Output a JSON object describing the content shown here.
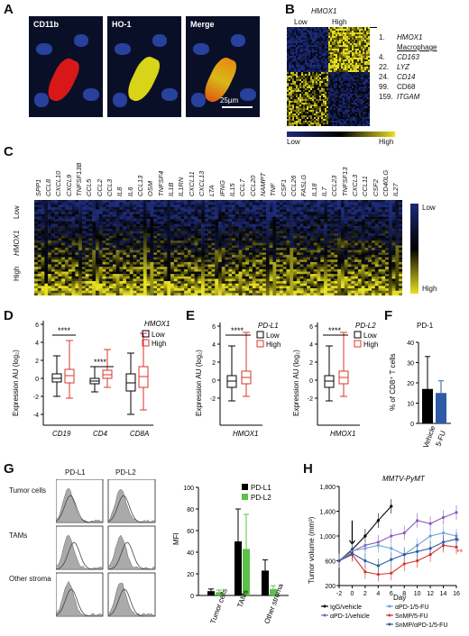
{
  "panels": {
    "a": "A",
    "b": "B",
    "c": "C",
    "d": "D",
    "e": "E",
    "f": "F",
    "g": "G",
    "h": "H"
  },
  "panelA": {
    "labels": [
      "CD11b",
      "HO-1",
      "Merge"
    ],
    "scale_bar": "25µm"
  },
  "panelB": {
    "title": "HMOX1",
    "col_low": "Low",
    "col_high": "High",
    "genes": [
      {
        "rank": "1.",
        "name": "HMOX1",
        "italic": true
      },
      {
        "rank": "",
        "name": "Macrophage",
        "italic": false,
        "underline": true
      },
      {
        "rank": "4.",
        "name": "CD163",
        "italic": true
      },
      {
        "rank": "22.",
        "name": "LYZ",
        "italic": true
      },
      {
        "rank": "24.",
        "name": "CD14",
        "italic": true
      },
      {
        "rank": "99.",
        "name": "CD68",
        "italic": false
      },
      {
        "rank": "159.",
        "name": "ITGAM",
        "italic": true
      }
    ],
    "scale_low": "Low",
    "scale_high": "High"
  },
  "panelC": {
    "genes": [
      "SPP1",
      "CCL8",
      "CXCL10",
      "CXCL9",
      "TNFSF13B",
      "CCL5",
      "CCL2",
      "CCL3",
      "IL8",
      "IL6",
      "CCL13",
      "OSM",
      "TNFSF4",
      "IL1B",
      "IL1RN",
      "CXCL11",
      "CXCL13",
      "LTA",
      "IFNG",
      "IL15",
      "CCL7",
      "CCL20",
      "NAMPT",
      "TNF",
      "CSF1",
      "CCL26",
      "FASLG",
      "IL18",
      "IL7",
      "CCL23",
      "TNFSF13",
      "CXCL3",
      "CCL11",
      "CSF2",
      "CD40LG",
      "IL27"
    ],
    "row_title": "HMOX1",
    "row_low": "Low",
    "row_high": "High",
    "scale_low": "Low",
    "scale_high": "High"
  },
  "panelD": {
    "ylabel": "Expression AU (log₂)",
    "legend_title": "HMOX1",
    "legend": [
      "Low",
      "High"
    ],
    "yticks": [
      "6",
      "4",
      "2",
      "0",
      "-2",
      "-4"
    ],
    "categories": [
      "CD19",
      "CD4",
      "CD8A"
    ],
    "sig": "****"
  },
  "panelE": {
    "ylabel": "Expression AU (log₂)",
    "plots": [
      {
        "legend_title": "PD-L1",
        "yticks": [
          "6",
          "4",
          "2",
          "0",
          "-2"
        ],
        "xlabel": "HMOX1"
      },
      {
        "legend_title": "PD-L2",
        "yticks": [
          "6",
          "4",
          "2",
          "0",
          "-2"
        ],
        "xlabel": "HMOX1"
      }
    ],
    "legend": [
      "Low",
      "High"
    ],
    "sig": "****"
  },
  "panelF": {
    "title": "PD-1",
    "ylabel": "% of CD8⁺ T cells",
    "yticks": [
      "40",
      "30",
      "20",
      "10",
      "0"
    ],
    "categories": [
      "Vehicle",
      "5-FU"
    ]
  },
  "panelG": {
    "col_headers": [
      "PD-L1",
      "PD-L2"
    ],
    "row_labels": [
      "Tumor cells",
      "TAMs",
      "Other stroma"
    ],
    "ylabel": "MFI",
    "yticks": [
      "100",
      "80",
      "60",
      "40",
      "20",
      "0"
    ],
    "legend": [
      "PD-L1",
      "PD-L2"
    ],
    "categories": [
      "Tumor cells",
      "TAMs",
      "Other stroma"
    ]
  },
  "panelH": {
    "title": "MMTV-PyMT",
    "ylabel": "Tumor volume (mm³)",
    "xlabel": "Day",
    "yticks": [
      "1,800",
      "1,400",
      "1,000",
      "600",
      "200"
    ],
    "xticks": [
      "-2",
      "0",
      "2",
      "4",
      "6",
      "8",
      "10",
      "12",
      "14",
      "16"
    ],
    "legend": [
      "IgG/vehicle",
      "αPD-1/vehicle",
      "αPD-1/5-FU",
      "SnMP/5-FU",
      "SnMP/αPD-1/5-FU"
    ],
    "sig": [
      "*",
      "**"
    ]
  },
  "colors": {
    "low": "#1c2a78",
    "high": "#e8e020",
    "red": "#d9342b",
    "black": "#000000",
    "green": "#5cc14a",
    "blue": "#2e5aa8",
    "purple": "#8a5bb8",
    "lightblue": "#6fa2d8"
  },
  "chart_data": [
    {
      "type": "bar",
      "title": "PD-1",
      "ylabel": "% of CD8⁺ T cells",
      "categories": [
        "Vehicle",
        "5-FU"
      ],
      "values": [
        17,
        15
      ],
      "ylim": [
        0,
        40
      ]
    },
    {
      "type": "bar",
      "ylabel": "MFI",
      "categories": [
        "Tumor cells",
        "TAMs",
        "Other stroma"
      ],
      "series": [
        {
          "name": "PD-L1",
          "values": [
            4,
            50,
            23
          ]
        },
        {
          "name": "PD-L2",
          "values": [
            3,
            43,
            6
          ]
        }
      ],
      "ylim": [
        0,
        100
      ]
    },
    {
      "type": "line",
      "title": "MMTV-PyMT",
      "xlabel": "Day",
      "ylabel": "Tumor volume (mm³)",
      "x": [
        -2,
        0,
        2,
        4,
        6,
        8,
        10,
        12,
        14,
        16
      ],
      "series": [
        {
          "name": "IgG/vehicle",
          "values": [
            600,
            780,
            1000,
            1250,
            1480,
            null,
            null,
            null,
            null,
            null
          ]
        },
        {
          "name": "αPD-1/vehicle",
          "values": [
            600,
            750,
            850,
            900,
            1000,
            1050,
            1250,
            1200,
            1300,
            1380
          ]
        },
        {
          "name": "αPD-1/5-FU",
          "values": [
            600,
            760,
            800,
            850,
            800,
            700,
            850,
            1000,
            1050,
            1000
          ]
        },
        {
          "name": "SnMP/5-FU",
          "values": [
            600,
            700,
            420,
            380,
            400,
            550,
            600,
            700,
            850,
            820
          ]
        },
        {
          "name": "SnMP/αPD-1/5-FU",
          "values": [
            600,
            720,
            600,
            520,
            620,
            700,
            750,
            800,
            900,
            950
          ]
        }
      ],
      "ylim": [
        200,
        1800
      ]
    }
  ]
}
